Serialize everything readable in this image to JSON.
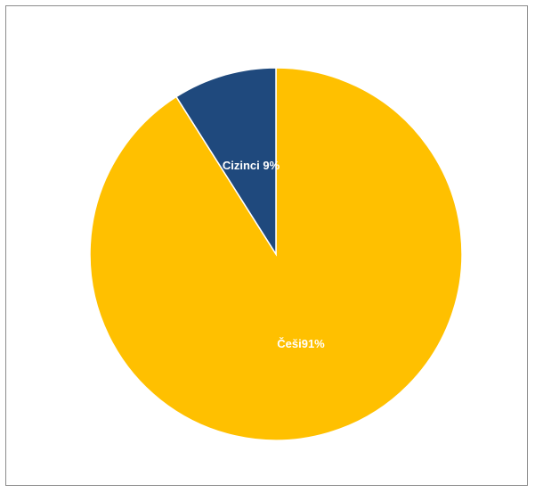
{
  "chart_data": {
    "type": "pie",
    "categories": [
      "Češi",
      "Cizinci"
    ],
    "values": [
      91,
      9
    ],
    "labels": [
      "Češi91%",
      "Cizinci 9%"
    ],
    "colors": [
      "#FFC000",
      "#1F497D"
    ],
    "legend": "none",
    "title": ""
  }
}
